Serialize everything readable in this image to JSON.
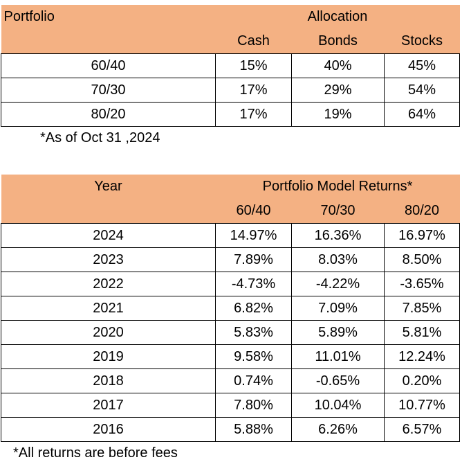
{
  "allocation": {
    "header": {
      "portfolio_label": "Portfolio",
      "group_label": "Allocation",
      "columns": [
        "Cash",
        "Bonds",
        "Stocks"
      ]
    },
    "rows": [
      {
        "portfolio": "60/40",
        "values": [
          "15%",
          "40%",
          "45%"
        ]
      },
      {
        "portfolio": "70/30",
        "values": [
          "17%",
          "29%",
          "54%"
        ]
      },
      {
        "portfolio": "80/20",
        "values": [
          "17%",
          "19%",
          "64%"
        ]
      }
    ],
    "footnote": "*As of Oct 31 ,2024"
  },
  "returns": {
    "header": {
      "year_label": "Year",
      "group_label": "Portfolio Model Returns*",
      "columns": [
        "60/40",
        "70/30",
        "80/20"
      ]
    },
    "rows": [
      {
        "year": "2024",
        "values": [
          "14.97%",
          "16.36%",
          "16.97%"
        ]
      },
      {
        "year": "2023",
        "values": [
          "7.89%",
          "8.03%",
          "8.50%"
        ]
      },
      {
        "year": "2022",
        "values": [
          "-4.73%",
          "-4.22%",
          "-3.65%"
        ]
      },
      {
        "year": "2021",
        "values": [
          "6.82%",
          "7.09%",
          "7.85%"
        ]
      },
      {
        "year": "2020",
        "values": [
          "5.83%",
          "5.89%",
          "5.81%"
        ]
      },
      {
        "year": "2019",
        "values": [
          "9.58%",
          "11.01%",
          "12.24%"
        ]
      },
      {
        "year": "2018",
        "values": [
          "0.74%",
          "-0.65%",
          "0.20%"
        ]
      },
      {
        "year": "2017",
        "values": [
          "7.80%",
          "10.04%",
          "10.77%"
        ]
      },
      {
        "year": "2016",
        "values": [
          "5.88%",
          "6.26%",
          "6.57%"
        ]
      }
    ],
    "footnote": "*All returns are before fees"
  },
  "colors": {
    "header_fill": "#f4b183",
    "border": "#000000"
  }
}
